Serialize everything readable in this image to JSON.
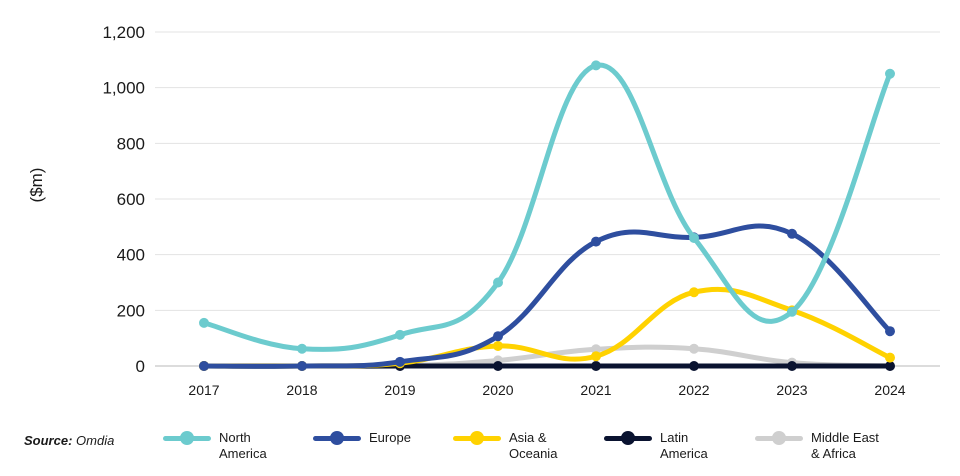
{
  "chart_data": {
    "type": "line",
    "ylabel": "($m)",
    "ylim": [
      0,
      1200
    ],
    "yticks": [
      "0",
      "200",
      "400",
      "600",
      "800",
      "1,000",
      "1,200"
    ],
    "categories": [
      "2017",
      "2018",
      "2019",
      "2020",
      "2021",
      "2022",
      "2023",
      "2024"
    ],
    "series": [
      {
        "name": "North\nAmerica",
        "color": "#6ccbce",
        "values": [
          155,
          62,
          112,
          300,
          1080,
          460,
          195,
          1050
        ]
      },
      {
        "name": "Europe",
        "color": "#2e4e9f",
        "values": [
          0,
          0,
          15,
          107,
          447,
          462,
          475,
          125
        ]
      },
      {
        "name": "Asia &\nOceania",
        "color": "#ffd200",
        "values": [
          0,
          0,
          10,
          72,
          35,
          265,
          200,
          30
        ]
      },
      {
        "name": "Latin\nAmerica",
        "color": "#0a1330",
        "values": [
          0,
          0,
          0,
          0,
          0,
          0,
          0,
          0
        ]
      },
      {
        "name": "Middle East\n& Africa",
        "color": "#cfcfcf",
        "values": [
          0,
          0,
          0,
          20,
          60,
          62,
          12,
          0
        ]
      }
    ],
    "grid": true,
    "legend_position": "bottom"
  },
  "source": {
    "label": "Source:",
    "value": "Omdia"
  }
}
